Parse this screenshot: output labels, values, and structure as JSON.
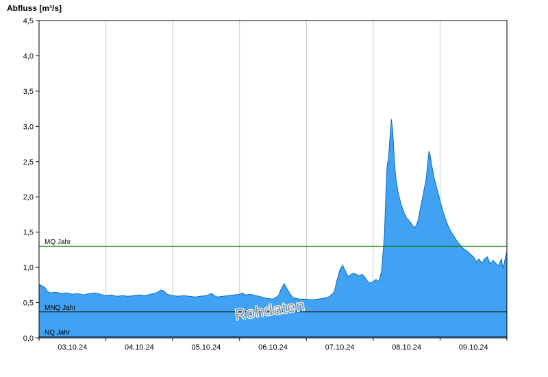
{
  "title": "Abfluss [m³/s]",
  "watermark": "Rohdaten",
  "colors": {
    "area_fill": "#41a1f2",
    "area_stroke": "#0c6cbd",
    "grid": "#c9c9c9",
    "axis": "#000000",
    "mq": "#0c7a0c",
    "mnq": "#1a1a1a",
    "nq": "#1a1a1a"
  },
  "chart_data": {
    "type": "area",
    "title": "Abfluss [m³/s]",
    "ylabel": "Abfluss [m³/s]",
    "xlabel": "",
    "ylim": [
      0,
      4.5
    ],
    "x_range_hours": [
      0,
      168
    ],
    "grid": "vertical-only",
    "y_ticks": [
      {
        "v": 0.0,
        "label": "0,0"
      },
      {
        "v": 0.5,
        "label": "0,5"
      },
      {
        "v": 1.0,
        "label": "1,0"
      },
      {
        "v": 1.5,
        "label": "1,5"
      },
      {
        "v": 2.0,
        "label": "2,0"
      },
      {
        "v": 2.5,
        "label": "2,5"
      },
      {
        "v": 3.0,
        "label": "3,0"
      },
      {
        "v": 3.5,
        "label": "3,5"
      },
      {
        "v": 4.0,
        "label": "4,0"
      },
      {
        "v": 4.5,
        "label": "4,5"
      }
    ],
    "x_labels": [
      {
        "t": 12,
        "label": "03.10.24"
      },
      {
        "t": 36,
        "label": "04.10.24"
      },
      {
        "t": 60,
        "label": "05.10.24"
      },
      {
        "t": 84,
        "label": "06.10.24"
      },
      {
        "t": 108,
        "label": "07.10.24"
      },
      {
        "t": 132,
        "label": "08.10.24"
      },
      {
        "t": 156,
        "label": "09.10.24"
      }
    ],
    "x_gridlines_hours": [
      24,
      48,
      72,
      96,
      120,
      144
    ],
    "reference_lines": [
      {
        "label": "MQ Jahr",
        "value": 1.3,
        "color_key": "mq"
      },
      {
        "label": "MNQ Jahr",
        "value": 0.37,
        "color_key": "mnq"
      },
      {
        "label": "NQ Jahr",
        "value": 0.02,
        "color_key": "nq"
      }
    ],
    "series": [
      {
        "name": "Abfluss Rohdaten",
        "points": [
          [
            0,
            0.76
          ],
          [
            1,
            0.74
          ],
          [
            2,
            0.72
          ],
          [
            3,
            0.66
          ],
          [
            4,
            0.64
          ],
          [
            6,
            0.65
          ],
          [
            8,
            0.63
          ],
          [
            10,
            0.64
          ],
          [
            12,
            0.62
          ],
          [
            14,
            0.63
          ],
          [
            16,
            0.61
          ],
          [
            18,
            0.63
          ],
          [
            20,
            0.64
          ],
          [
            22,
            0.62
          ],
          [
            24,
            0.6
          ],
          [
            26,
            0.61
          ],
          [
            28,
            0.59
          ],
          [
            30,
            0.6
          ],
          [
            32,
            0.59
          ],
          [
            34,
            0.6
          ],
          [
            36,
            0.61
          ],
          [
            38,
            0.6
          ],
          [
            40,
            0.62
          ],
          [
            42,
            0.64
          ],
          [
            44,
            0.68
          ],
          [
            45,
            0.66
          ],
          [
            46,
            0.62
          ],
          [
            48,
            0.6
          ],
          [
            50,
            0.59
          ],
          [
            52,
            0.6
          ],
          [
            54,
            0.59
          ],
          [
            56,
            0.58
          ],
          [
            58,
            0.59
          ],
          [
            60,
            0.6
          ],
          [
            62,
            0.63
          ],
          [
            63,
            0.6
          ],
          [
            64,
            0.58
          ],
          [
            66,
            0.59
          ],
          [
            68,
            0.6
          ],
          [
            70,
            0.61
          ],
          [
            72,
            0.62
          ],
          [
            73,
            0.64
          ],
          [
            74,
            0.61
          ],
          [
            76,
            0.62
          ],
          [
            78,
            0.6
          ],
          [
            80,
            0.58
          ],
          [
            82,
            0.56
          ],
          [
            84,
            0.55
          ],
          [
            86,
            0.6
          ],
          [
            87,
            0.7
          ],
          [
            88,
            0.77
          ],
          [
            89,
            0.7
          ],
          [
            90,
            0.63
          ],
          [
            91,
            0.58
          ],
          [
            92,
            0.56
          ],
          [
            94,
            0.55
          ],
          [
            96,
            0.55
          ],
          [
            98,
            0.54
          ],
          [
            100,
            0.55
          ],
          [
            102,
            0.56
          ],
          [
            104,
            0.58
          ],
          [
            106,
            0.65
          ],
          [
            107,
            0.82
          ],
          [
            108,
            0.96
          ],
          [
            109,
            1.03
          ],
          [
            110,
            0.95
          ],
          [
            111,
            0.87
          ],
          [
            112,
            0.9
          ],
          [
            113,
            0.92
          ],
          [
            114,
            0.9
          ],
          [
            115,
            0.88
          ],
          [
            116,
            0.9
          ],
          [
            117,
            0.86
          ],
          [
            118,
            0.8
          ],
          [
            119,
            0.78
          ],
          [
            120,
            0.8
          ],
          [
            121,
            0.83
          ],
          [
            122,
            0.8
          ],
          [
            123,
            0.95
          ],
          [
            124,
            1.45
          ],
          [
            124.5,
            2.0
          ],
          [
            125,
            2.45
          ],
          [
            125.5,
            2.55
          ],
          [
            126,
            2.85
          ],
          [
            126.5,
            3.1
          ],
          [
            127,
            2.95
          ],
          [
            127.5,
            2.6
          ],
          [
            128,
            2.3
          ],
          [
            129,
            2.05
          ],
          [
            130,
            1.9
          ],
          [
            131,
            1.78
          ],
          [
            132,
            1.7
          ],
          [
            133,
            1.66
          ],
          [
            134,
            1.6
          ],
          [
            135,
            1.56
          ],
          [
            136,
            1.65
          ],
          [
            137,
            1.85
          ],
          [
            138,
            2.05
          ],
          [
            139,
            2.25
          ],
          [
            139.5,
            2.45
          ],
          [
            140,
            2.65
          ],
          [
            140.5,
            2.58
          ],
          [
            141,
            2.45
          ],
          [
            142,
            2.25
          ],
          [
            143,
            2.1
          ],
          [
            144,
            1.95
          ],
          [
            145,
            1.8
          ],
          [
            146,
            1.68
          ],
          [
            147,
            1.58
          ],
          [
            148,
            1.5
          ],
          [
            150,
            1.38
          ],
          [
            152,
            1.28
          ],
          [
            154,
            1.22
          ],
          [
            156,
            1.15
          ],
          [
            157,
            1.08
          ],
          [
            158,
            1.12
          ],
          [
            159,
            1.06
          ],
          [
            160,
            1.12
          ],
          [
            161,
            1.15
          ],
          [
            162,
            1.05
          ],
          [
            163,
            1.1
          ],
          [
            164,
            1.06
          ],
          [
            165,
            1.02
          ],
          [
            166,
            1.12
          ],
          [
            166.5,
            1.0
          ],
          [
            167,
            1.05
          ],
          [
            167.5,
            1.15
          ],
          [
            168,
            1.22
          ]
        ]
      }
    ]
  }
}
